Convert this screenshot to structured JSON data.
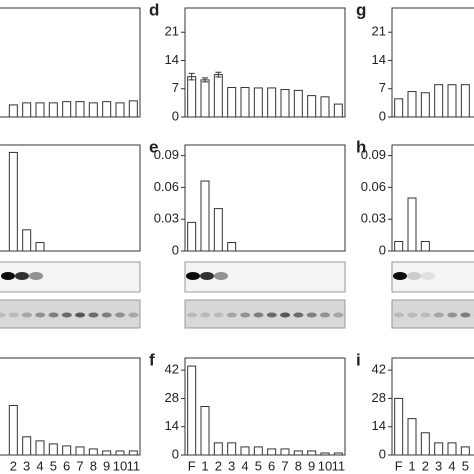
{
  "chart_data": [
    {
      "type": "bar",
      "ylim": [
        0,
        27
      ],
      "values": [
        null,
        null,
        3,
        3.5,
        3.5,
        3.5,
        3.8,
        3.8,
        3.5,
        3.8,
        3.5,
        4
      ]
    },
    {
      "type": "bar",
      "label": "d",
      "ylim": [
        0,
        27
      ],
      "yticks": [
        0,
        7,
        14,
        21
      ],
      "values": [
        10,
        9.2,
        10.5,
        7.3,
        7.3,
        7.2,
        7.2,
        6.8,
        6.6,
        5.3,
        5,
        3.2
      ],
      "errors": [
        0.8,
        0.5,
        0.6,
        null,
        null,
        null,
        null,
        null,
        null,
        null,
        null,
        null
      ]
    },
    {
      "type": "bar",
      "label": "g",
      "ylim": [
        0,
        27
      ],
      "yticks": [
        0,
        7,
        14,
        21
      ],
      "values": [
        4.5,
        6.3,
        6,
        8,
        8,
        8,
        null,
        null,
        null,
        null,
        null,
        null
      ]
    },
    {
      "type": "bar",
      "ylim": [
        0,
        0.1
      ],
      "values": [
        null,
        null,
        0.093,
        0.02,
        0.008,
        0,
        0,
        0,
        0,
        0,
        0,
        0
      ]
    },
    {
      "type": "bar",
      "label": "e",
      "ylim": [
        0,
        0.1
      ],
      "yticks": [
        0,
        0.03,
        0.06,
        0.09
      ],
      "values": [
        0.027,
        0.066,
        0.04,
        0.008,
        0,
        0,
        0,
        0,
        0,
        0,
        0,
        0
      ]
    },
    {
      "type": "bar",
      "label": "h",
      "ylim": [
        0,
        0.1
      ],
      "yticks": [
        0,
        0.03,
        0.06,
        0.09
      ],
      "values": [
        0.009,
        0.05,
        0.009,
        0,
        0,
        0,
        null,
        null,
        null,
        null,
        null,
        null
      ]
    },
    {
      "type": "bar",
      "ylim": [
        0,
        48
      ],
      "categories": [
        null,
        null,
        "2",
        "3",
        "4",
        "5",
        "6",
        "7",
        "8",
        "9",
        "10",
        "11"
      ],
      "values": [
        null,
        null,
        24.5,
        9,
        7,
        5.5,
        4.5,
        4,
        3,
        2,
        2,
        2
      ]
    },
    {
      "type": "bar",
      "label": "f",
      "ylim": [
        0,
        48
      ],
      "yticks": [
        0,
        14,
        28,
        42
      ],
      "categories": [
        "F",
        "1",
        "2",
        "3",
        "4",
        "5",
        "6",
        "7",
        "8",
        "9",
        "10",
        "11"
      ],
      "values": [
        44,
        24,
        6,
        6,
        4,
        4,
        3,
        3,
        2,
        2,
        1,
        1
      ]
    },
    {
      "type": "bar",
      "label": "i",
      "ylim": [
        0,
        48
      ],
      "yticks": [
        0,
        14,
        28,
        42
      ],
      "categories": [
        "F",
        "1",
        "2",
        "3",
        "4",
        "5",
        null,
        null,
        null,
        null,
        null,
        null
      ],
      "values": [
        28,
        18,
        11,
        6,
        6,
        4,
        null,
        null,
        null,
        null,
        null,
        null
      ]
    }
  ]
}
